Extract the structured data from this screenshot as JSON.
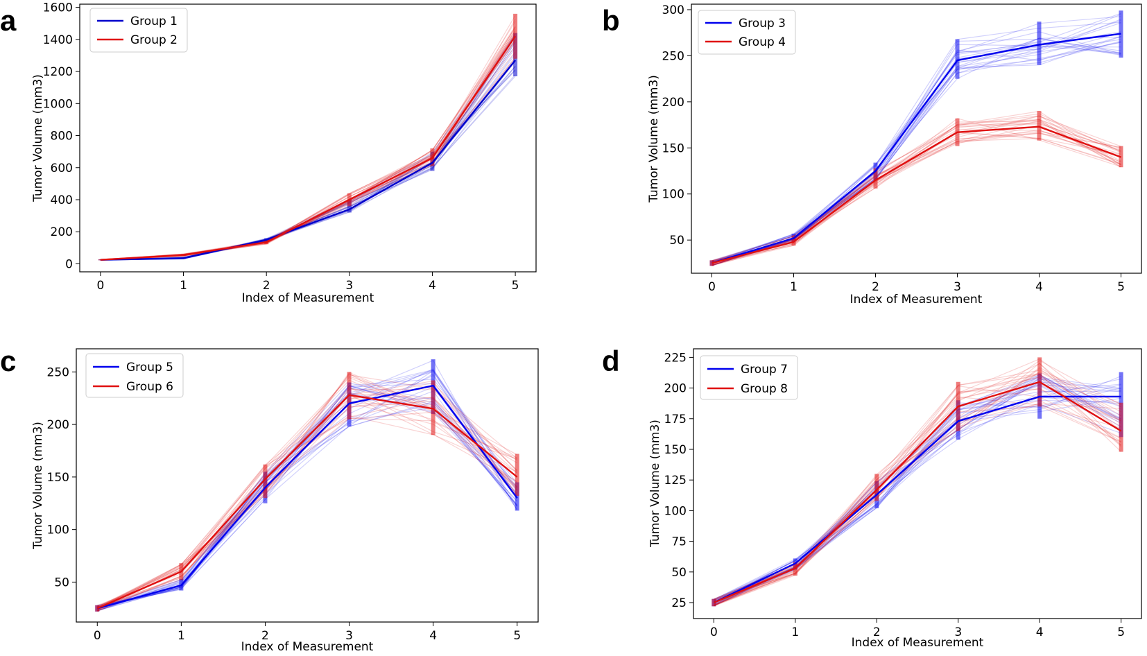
{
  "chart_data": [
    {
      "panel": "a",
      "type": "line",
      "title": "",
      "xlabel": "Index of Measurement",
      "ylabel": "Tumor Volume (mm3)",
      "x": [
        0,
        1,
        2,
        3,
        4,
        5
      ],
      "xlim": [
        -0.25,
        5.25
      ],
      "ylim": [
        -50,
        1620
      ],
      "yticks": [
        0,
        200,
        400,
        600,
        800,
        1000,
        1200,
        1400,
        1600
      ],
      "legend_position": "top-left",
      "series": [
        {
          "name": "Group 1",
          "color": "#0000cc",
          "values": [
            25,
            35,
            150,
            340,
            630,
            1270
          ],
          "low": [
            22,
            30,
            140,
            320,
            580,
            1170
          ],
          "high": [
            28,
            42,
            160,
            400,
            700,
            1440
          ]
        },
        {
          "name": "Group 2",
          "color": "#e01010",
          "values": [
            25,
            55,
            135,
            400,
            660,
            1420
          ],
          "low": [
            22,
            48,
            122,
            360,
            610,
            1280
          ],
          "high": [
            28,
            62,
            150,
            440,
            720,
            1560
          ]
        }
      ]
    },
    {
      "panel": "b",
      "type": "line",
      "title": "",
      "xlabel": "Index of Measurement",
      "ylabel": "Tumor Volume (mm3)",
      "x": [
        0,
        1,
        2,
        3,
        4,
        5
      ],
      "xlim": [
        -0.25,
        5.25
      ],
      "ylim": [
        14,
        306
      ],
      "yticks": [
        50,
        100,
        150,
        200,
        250,
        300
      ],
      "legend_position": "top-left",
      "series": [
        {
          "name": "Group 3",
          "color": "#0000ee",
          "values": [
            25,
            52,
            125,
            245,
            262,
            274
          ],
          "low": [
            22,
            48,
            115,
            225,
            240,
            248
          ],
          "high": [
            28,
            57,
            134,
            268,
            287,
            299
          ]
        },
        {
          "name": "Group 4",
          "color": "#e01010",
          "values": [
            25,
            48,
            115,
            167,
            173,
            140
          ],
          "low": [
            22,
            44,
            106,
            152,
            158,
            129
          ],
          "high": [
            28,
            55,
            128,
            182,
            190,
            152
          ]
        }
      ]
    },
    {
      "panel": "c",
      "type": "line",
      "title": "",
      "xlabel": "Index of Measurement",
      "ylabel": "Tumor Volume (mm3)",
      "x": [
        0,
        1,
        2,
        3,
        4,
        5
      ],
      "xlim": [
        -0.25,
        5.25
      ],
      "ylim": [
        12,
        272
      ],
      "yticks": [
        50,
        100,
        150,
        200,
        250
      ],
      "legend_position": "top-left",
      "series": [
        {
          "name": "Group 5",
          "color": "#0000ee",
          "values": [
            25,
            47,
            140,
            220,
            237,
            130
          ],
          "low": [
            22,
            42,
            125,
            198,
            210,
            118
          ],
          "high": [
            28,
            53,
            155,
            240,
            262,
            145
          ]
        },
        {
          "name": "Group 6",
          "color": "#e01010",
          "values": [
            25,
            60,
            148,
            228,
            215,
            150
          ],
          "low": [
            22,
            52,
            130,
            205,
            190,
            132
          ],
          "high": [
            28,
            68,
            162,
            250,
            242,
            172
          ]
        }
      ]
    },
    {
      "panel": "d",
      "type": "line",
      "title": "",
      "xlabel": "Index of Measurement",
      "ylabel": "Tumor Volume (mm3)",
      "x": [
        0,
        1,
        2,
        3,
        4,
        5
      ],
      "xlim": [
        -0.25,
        5.25
      ],
      "ylim": [
        12,
        232
      ],
      "yticks": [
        25,
        50,
        75,
        100,
        125,
        150,
        175,
        200,
        225
      ],
      "legend_position": "top-left",
      "series": [
        {
          "name": "Group 7",
          "color": "#0000ee",
          "values": [
            25,
            57,
            113,
            173,
            193,
            193
          ],
          "low": [
            22,
            52,
            102,
            158,
            175,
            160
          ],
          "high": [
            28,
            61,
            124,
            190,
            212,
            213
          ]
        },
        {
          "name": "Group 8",
          "color": "#e01010",
          "values": [
            25,
            53,
            117,
            185,
            205,
            165
          ],
          "low": [
            22,
            47,
            108,
            165,
            185,
            148
          ],
          "high": [
            28,
            58,
            130,
            205,
            225,
            188
          ]
        }
      ]
    }
  ]
}
